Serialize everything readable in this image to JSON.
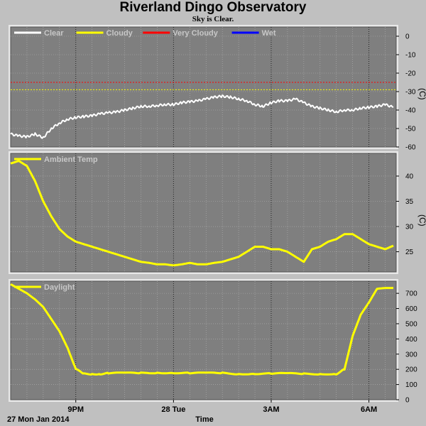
{
  "header": {
    "title": "Riverland Dingo Observatory",
    "subtitle": "Sky is Clear."
  },
  "footer": {
    "date_label": "27 Mon Jan 2014",
    "x_axis_title": "Time"
  },
  "colors": {
    "panel_bg": "#7f7f7f",
    "grid": "#b4b4b4",
    "page_bg": "#c0c0c0",
    "clear": "#ffffff",
    "cloudy": "#ffff00",
    "very_cloudy": "#ff0000",
    "wet": "#0000ff",
    "ambient": "#ffff00",
    "daylight": "#ffff00"
  },
  "chart_data": [
    {
      "type": "line",
      "id": "sky",
      "xlabel": "Time",
      "ylabel": "(C)",
      "x_ticks": [
        "9PM",
        "28 Tue",
        "3AM",
        "6AM"
      ],
      "y_ticks": [
        0,
        -10,
        -20,
        -30,
        -40,
        -50,
        -60
      ],
      "ylim": [
        -60,
        5
      ],
      "grid": true,
      "legend_position": "top-left",
      "legend": [
        {
          "name": "Clear",
          "color": "#ffffff"
        },
        {
          "name": "Cloudy",
          "color": "#ffff00"
        },
        {
          "name": "Very Cloudy",
          "color": "#ff0000"
        },
        {
          "name": "Wet",
          "color": "#0000ff"
        }
      ],
      "thresholds": [
        {
          "name": "Very Cloudy",
          "value": -25,
          "color": "#ff0000"
        },
        {
          "name": "Cloudy",
          "value": -29,
          "color": "#ffff00"
        }
      ],
      "series": [
        {
          "name": "Clear",
          "color": "#ffffff",
          "x": [
            0,
            0.25,
            0.5,
            0.75,
            1.0,
            1.25,
            1.5,
            1.75,
            2.0,
            2.25,
            2.5,
            2.75,
            3.0,
            3.25,
            3.5,
            3.75,
            4.0,
            4.25,
            4.5,
            4.75,
            5.0,
            5.25,
            5.5,
            5.75,
            6.0,
            6.25,
            6.5,
            6.75,
            7.0,
            7.25,
            7.5,
            7.75,
            8.0,
            8.25,
            8.5,
            8.75,
            9.0,
            9.25,
            9.5,
            9.75,
            10.0,
            10.25,
            10.5,
            10.75,
            11.0,
            11.25,
            11.5,
            11.75
          ],
          "values": [
            -53,
            -54,
            -54.5,
            -53,
            -55,
            -50,
            -47,
            -45,
            -44,
            -43.5,
            -43,
            -42,
            -41.5,
            -41,
            -40,
            -39,
            -38,
            -38,
            -37.5,
            -37,
            -37,
            -36,
            -35.5,
            -35,
            -34,
            -33,
            -32.5,
            -33,
            -34,
            -35,
            -37,
            -38,
            -36,
            -35,
            -35,
            -34,
            -36,
            -38,
            -39,
            -40,
            -41,
            -40,
            -40,
            -39,
            -38.5,
            -38,
            -37,
            -38.5
          ]
        }
      ]
    },
    {
      "type": "line",
      "id": "ambient",
      "ylabel": "(C)",
      "x_ticks": [
        "9PM",
        "28 Tue",
        "3AM",
        "6AM"
      ],
      "y_ticks": [
        25,
        30,
        35,
        40
      ],
      "ylim": [
        21,
        44.5
      ],
      "grid": true,
      "legend_position": "top-left",
      "legend": [
        {
          "name": "Ambient Temp",
          "color": "#ffff00"
        }
      ],
      "series": [
        {
          "name": "Ambient Temp",
          "color": "#ffff00",
          "x": [
            0,
            0.25,
            0.5,
            0.75,
            1.0,
            1.25,
            1.5,
            1.75,
            2.0,
            2.25,
            2.5,
            2.75,
            3.0,
            3.25,
            3.5,
            3.75,
            4.0,
            4.25,
            4.5,
            4.75,
            5.0,
            5.25,
            5.5,
            5.75,
            6.0,
            6.25,
            6.5,
            6.75,
            7.0,
            7.25,
            7.5,
            7.75,
            8.0,
            8.25,
            8.5,
            8.75,
            9.0,
            9.25,
            9.5,
            9.75,
            10.0,
            10.25,
            10.5,
            10.75,
            11.0,
            11.25,
            11.5,
            11.75
          ],
          "values": [
            42.5,
            43,
            42,
            39,
            35,
            32,
            29.5,
            28,
            27,
            26.5,
            26,
            25.5,
            25,
            24.5,
            24,
            23.5,
            23,
            22.8,
            22.5,
            22.5,
            22.3,
            22.5,
            22.8,
            22.5,
            22.5,
            22.8,
            23,
            23.5,
            24,
            25,
            26,
            26,
            25.5,
            25.5,
            25,
            24,
            23,
            25.5,
            26,
            27,
            27.5,
            28.5,
            28.5,
            27.5,
            26.5,
            26,
            25.5,
            26.2
          ]
        }
      ]
    },
    {
      "type": "line",
      "id": "daylight",
      "xlabel": "Time",
      "x_ticks": [
        "9PM",
        "28 Tue",
        "3AM",
        "6AM"
      ],
      "y_ticks": [
        0,
        100,
        200,
        300,
        400,
        500,
        600,
        700
      ],
      "ylim": [
        0,
        780
      ],
      "grid": true,
      "legend_position": "top-left",
      "legend": [
        {
          "name": "Daylight",
          "color": "#ffff00"
        }
      ],
      "series": [
        {
          "name": "Daylight",
          "color": "#ffff00",
          "x": [
            0,
            0.25,
            0.5,
            0.75,
            1.0,
            1.25,
            1.5,
            1.75,
            2.0,
            2.25,
            2.5,
            2.75,
            3.0,
            3.5,
            4.0,
            4.5,
            5.0,
            5.5,
            6.0,
            6.5,
            7.0,
            7.5,
            8.0,
            8.5,
            9.0,
            9.5,
            10.0,
            10.25,
            10.5,
            10.75,
            11.0,
            11.25,
            11.5,
            11.75
          ],
          "values": [
            760,
            730,
            700,
            660,
            610,
            530,
            450,
            340,
            200,
            170,
            170,
            170,
            175,
            175,
            175,
            178,
            178,
            175,
            175,
            175,
            170,
            172,
            172,
            172,
            170,
            170,
            170,
            200,
            420,
            560,
            640,
            730,
            735,
            735
          ]
        }
      ]
    }
  ]
}
